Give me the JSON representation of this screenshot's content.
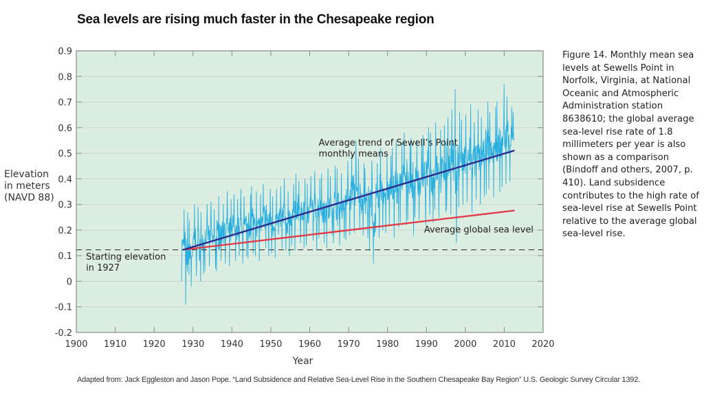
{
  "title": "Sea levels are rising much faster in the Chesapeake region",
  "caption": "Figure 14.    Monthly mean sea levels at Sewells Point in Norfolk, Virginia, at National Oceanic and Atmospheric Administration station 8638610; the global average sea-level rise rate of 1.8 millimeters per year is also shown as a comparison (Bindoff and others, 2007, p. 410). Land subsidence contributes to the high rate of sea-level rise at Sewells Point relative to the average global sea-level rise.",
  "source": "Adapted from: Jack Eggleston and Jason Pope. “Land Subsidence and Relative Sea-Level Rise in the Southern Chesapeake Bay Region” U.S. Geologic Survey Circular 1392.",
  "ylabel_lines": [
    "Elevation",
    "in meters",
    "(NAVD 88)"
  ],
  "colors": {
    "plot_background": "#dcede1",
    "gridline": "#c9d6cd",
    "axis": "#8a8a8a",
    "monthly_series": "#29aee0",
    "sewells_trend": "#2b2a8c",
    "global_trend": "#e03c4a",
    "starting_line": "#444444"
  },
  "chart_data": {
    "type": "line",
    "title": "Sea levels are rising much faster in the Chesapeake region",
    "xlabel": "Year",
    "ylabel": "Elevation in meters (NAVD 88)",
    "xlim": [
      1900,
      2020
    ],
    "ylim": [
      -0.2,
      0.9
    ],
    "x_ticks": [
      1900,
      1910,
      1920,
      1930,
      1940,
      1950,
      1960,
      1970,
      1980,
      1990,
      2000,
      2010,
      2020
    ],
    "y_ticks": [
      -0.2,
      -0.1,
      0,
      0.1,
      0.2,
      0.3,
      0.4,
      0.5,
      0.6,
      0.7,
      0.8,
      0.9
    ],
    "y_tick_labels": [
      "-0.2",
      "-0.1",
      "0",
      "0.1",
      "0.2",
      "0.3",
      "0.4",
      "0.5",
      "0.6",
      "0.7",
      "0.8",
      "0.9"
    ],
    "grid": "horizontal",
    "series": [
      {
        "name": "Sewells Point monthly mean sea level",
        "kind": "monthly-envelope",
        "note": "approximate yearly low/high range of monthly means, read from the figure",
        "years": [
          1927,
          1928,
          1929,
          1930,
          1931,
          1932,
          1933,
          1934,
          1935,
          1936,
          1937,
          1938,
          1939,
          1940,
          1941,
          1942,
          1943,
          1944,
          1945,
          1946,
          1947,
          1948,
          1949,
          1950,
          1951,
          1952,
          1953,
          1954,
          1955,
          1956,
          1957,
          1958,
          1959,
          1960,
          1961,
          1962,
          1963,
          1964,
          1965,
          1966,
          1967,
          1968,
          1969,
          1970,
          1971,
          1972,
          1973,
          1974,
          1975,
          1976,
          1977,
          1978,
          1979,
          1980,
          1981,
          1982,
          1983,
          1984,
          1985,
          1986,
          1987,
          1988,
          1989,
          1990,
          1991,
          1992,
          1993,
          1994,
          1995,
          1996,
          1997,
          1998,
          1999,
          2000,
          2001,
          2002,
          2003,
          2004,
          2005,
          2006,
          2007,
          2008,
          2009,
          2010,
          2011,
          2012
        ],
        "low": [
          0.0,
          -0.09,
          -0.02,
          0.02,
          0.0,
          0.03,
          0.04,
          0.06,
          0.05,
          0.04,
          0.08,
          0.07,
          0.06,
          0.08,
          0.1,
          0.07,
          0.1,
          0.09,
          0.11,
          0.1,
          0.08,
          0.13,
          0.1,
          0.11,
          0.09,
          0.13,
          0.12,
          0.1,
          0.14,
          0.12,
          0.15,
          0.13,
          0.14,
          0.16,
          0.12,
          0.17,
          0.15,
          0.13,
          0.18,
          0.15,
          0.14,
          0.17,
          0.16,
          0.18,
          0.19,
          0.2,
          0.18,
          0.17,
          0.12,
          0.07,
          0.17,
          0.2,
          0.19,
          0.22,
          0.17,
          0.21,
          0.23,
          0.22,
          0.24,
          0.18,
          0.25,
          0.24,
          0.22,
          0.26,
          0.23,
          0.28,
          0.25,
          0.27,
          0.28,
          0.26,
          0.15,
          0.29,
          0.3,
          0.31,
          0.27,
          0.32,
          0.3,
          0.33,
          0.34,
          0.36,
          0.33,
          0.35,
          0.37,
          0.38,
          0.39,
          0.45
        ],
        "high": [
          0.28,
          0.27,
          0.24,
          0.3,
          0.29,
          0.27,
          0.3,
          0.31,
          0.28,
          0.33,
          0.3,
          0.35,
          0.32,
          0.34,
          0.32,
          0.36,
          0.33,
          0.34,
          0.37,
          0.35,
          0.34,
          0.38,
          0.36,
          0.33,
          0.36,
          0.37,
          0.4,
          0.35,
          0.38,
          0.42,
          0.39,
          0.4,
          0.38,
          0.41,
          0.43,
          0.4,
          0.42,
          0.44,
          0.41,
          0.45,
          0.44,
          0.42,
          0.47,
          0.49,
          0.55,
          0.48,
          0.46,
          0.44,
          0.47,
          0.42,
          0.46,
          0.52,
          0.5,
          0.49,
          0.52,
          0.55,
          0.54,
          0.58,
          0.53,
          0.56,
          0.55,
          0.53,
          0.57,
          0.6,
          0.58,
          0.62,
          0.59,
          0.61,
          0.64,
          0.67,
          0.75,
          0.66,
          0.63,
          0.65,
          0.69,
          0.62,
          0.67,
          0.64,
          0.7,
          0.66,
          0.68,
          0.7,
          0.77,
          0.72,
          0.68,
          0.66
        ]
      },
      {
        "name": "Average trend of Sewell's Point monthly means",
        "x": [
          1927.5,
          2012.5
        ],
        "y": [
          0.123,
          0.51
        ]
      },
      {
        "name": "Average global sea level",
        "x": [
          1927.5,
          2012.5
        ],
        "y": [
          0.123,
          0.276
        ]
      },
      {
        "name": "Starting elevation in 1927",
        "kind": "reference-hline",
        "y": 0.123
      }
    ],
    "annotations": [
      {
        "id": "sewells-trend-label",
        "lines": [
          "Average trend of Sewell’s Point",
          "monthly means"
        ],
        "x": 1962.3,
        "y": 0.53
      },
      {
        "id": "global-trend-label",
        "lines": [
          "Average global sea level"
        ],
        "x": 1989.4,
        "y": 0.19
      },
      {
        "id": "starting-elevation-label",
        "lines": [
          "Starting elevation",
          "in 1927"
        ],
        "x": 1902.5,
        "y": 0.085
      }
    ]
  }
}
